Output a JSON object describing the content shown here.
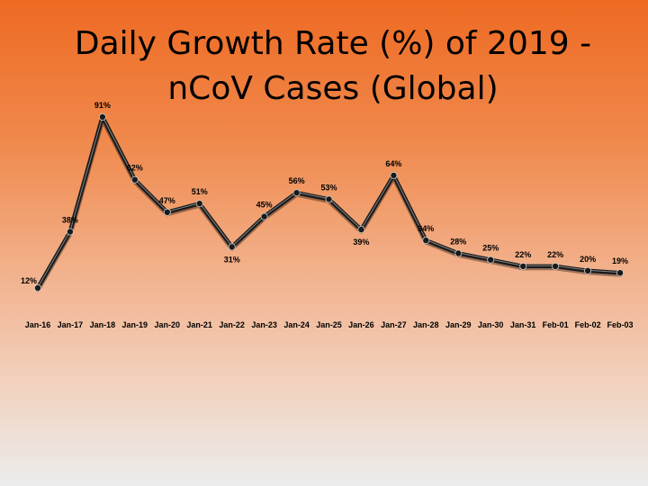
{
  "chart_data": {
    "type": "line",
    "title_lines": [
      "Daily Growth Rate (%) of 2019 -",
      "nCoV Cases (Global)"
    ],
    "xlabel": "",
    "ylabel": "",
    "categories": [
      "Jan-16",
      "Jan-17",
      "Jan-18",
      "Jan-19",
      "Jan-20",
      "Jan-21",
      "Jan-22",
      "Jan-23",
      "Jan-24",
      "Jan-25",
      "Jan-26",
      "Jan-27",
      "Jan-28",
      "Jan-29",
      "Jan-30",
      "Jan-31",
      "Feb-01",
      "Feb-02",
      "Feb-03"
    ],
    "series": [
      {
        "name": "Daily Growth Rate (%)",
        "values": [
          12,
          38,
          91,
          62,
          47,
          51,
          31,
          45,
          56,
          53,
          39,
          64,
          34,
          28,
          25,
          22,
          22,
          20,
          19
        ],
        "labels": [
          "12%",
          "38%",
          "91%",
          "62%",
          "47%",
          "51%",
          "31%",
          "45%",
          "56%",
          "53%",
          "39%",
          "64%",
          "34%",
          "28%",
          "25%",
          "22%",
          "22%",
          "20%",
          "19%"
        ]
      }
    ],
    "ylim": [
      0,
      100
    ],
    "grid": false,
    "legend": "none",
    "colors": {
      "line": "#1a1a1a",
      "line_highlight": "#d9d9d9",
      "marker_fill": "#1a1a1a"
    }
  }
}
